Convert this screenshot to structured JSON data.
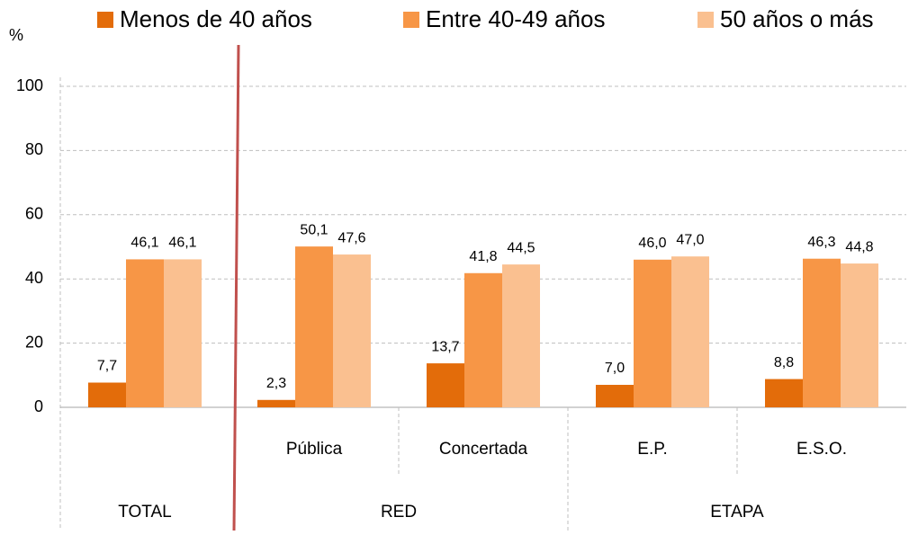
{
  "chart_data": {
    "type": "bar",
    "y_label": "%",
    "groups": [
      {
        "name": "TOTAL",
        "categories": [
          null
        ]
      },
      {
        "name": "RED",
        "categories": [
          "Pública",
          "Concertada"
        ]
      },
      {
        "name": "ETAPA",
        "categories": [
          "E.P.",
          "E.S.O."
        ]
      }
    ],
    "series": [
      {
        "name": "Menos de 40 años",
        "color": "#e36c0a",
        "values": [
          7.7,
          2.3,
          13.7,
          7.0,
          8.8
        ],
        "value_labels": [
          "7,7",
          "2,3",
          "13,7",
          "7,0",
          "8,8"
        ]
      },
      {
        "name": "Entre 40-49 años",
        "color": "#f79646",
        "values": [
          46.1,
          50.1,
          41.8,
          46.0,
          46.3
        ],
        "value_labels": [
          "46,1",
          "50,1",
          "41,8",
          "46,0",
          "46,3"
        ]
      },
      {
        "name": "50 años o más",
        "color": "#fac090",
        "values": [
          46.1,
          47.6,
          44.5,
          47.0,
          44.8
        ],
        "value_labels": [
          "46,1",
          "47,6",
          "44,5",
          "47,0",
          "44,8"
        ]
      }
    ],
    "ylim": [
      0,
      100
    ],
    "yticks": [
      0,
      20,
      40,
      60,
      80,
      100
    ],
    "grid": true,
    "legend": "top"
  }
}
